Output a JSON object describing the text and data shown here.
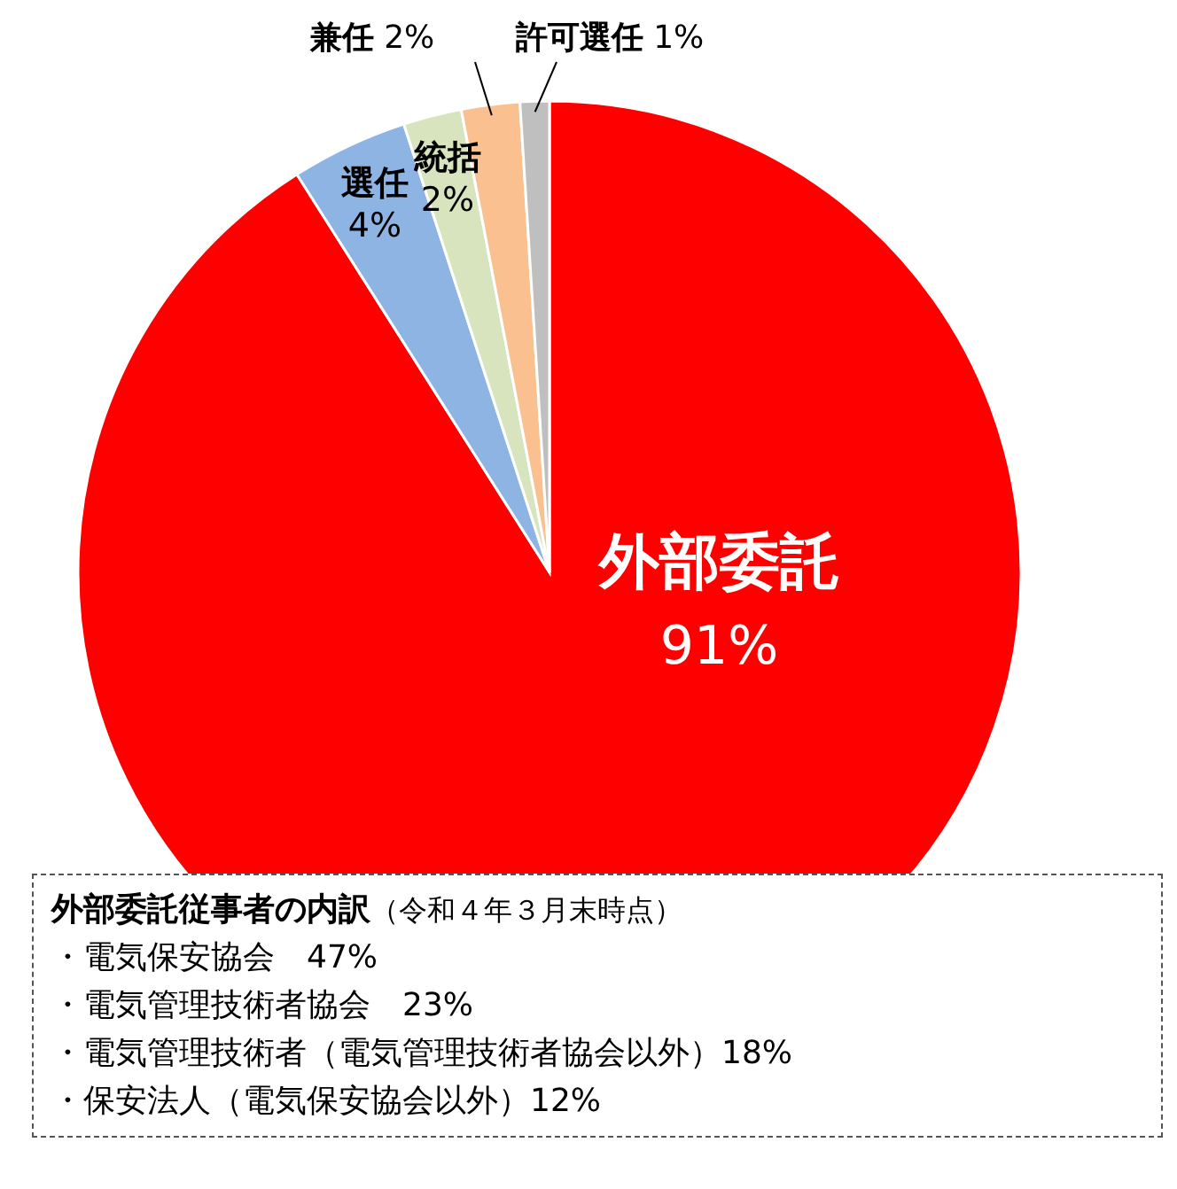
{
  "chart_data": {
    "type": "pie",
    "categories": [
      "外部委託",
      "選任",
      "統括",
      "兼任",
      "許可選任"
    ],
    "values": [
      91,
      4,
      2,
      2,
      1
    ],
    "value_labels": [
      "91%",
      "4%",
      "2%",
      "2%",
      "1%"
    ],
    "colors": [
      "#ff0000",
      "#8eb4e3",
      "#d7e4bd",
      "#fac090",
      "#bfbfbf"
    ],
    "legend": false,
    "annotations": [
      "外部委託従事者の内訳",
      "（令和４年３月末時点）",
      "・電気保安協会　47%",
      "・電気管理技術者協会　23%",
      "・電気管理技術者（電気管理技術者協会以外）18%",
      "・保安法人（電気保安協会以外）12%"
    ]
  }
}
